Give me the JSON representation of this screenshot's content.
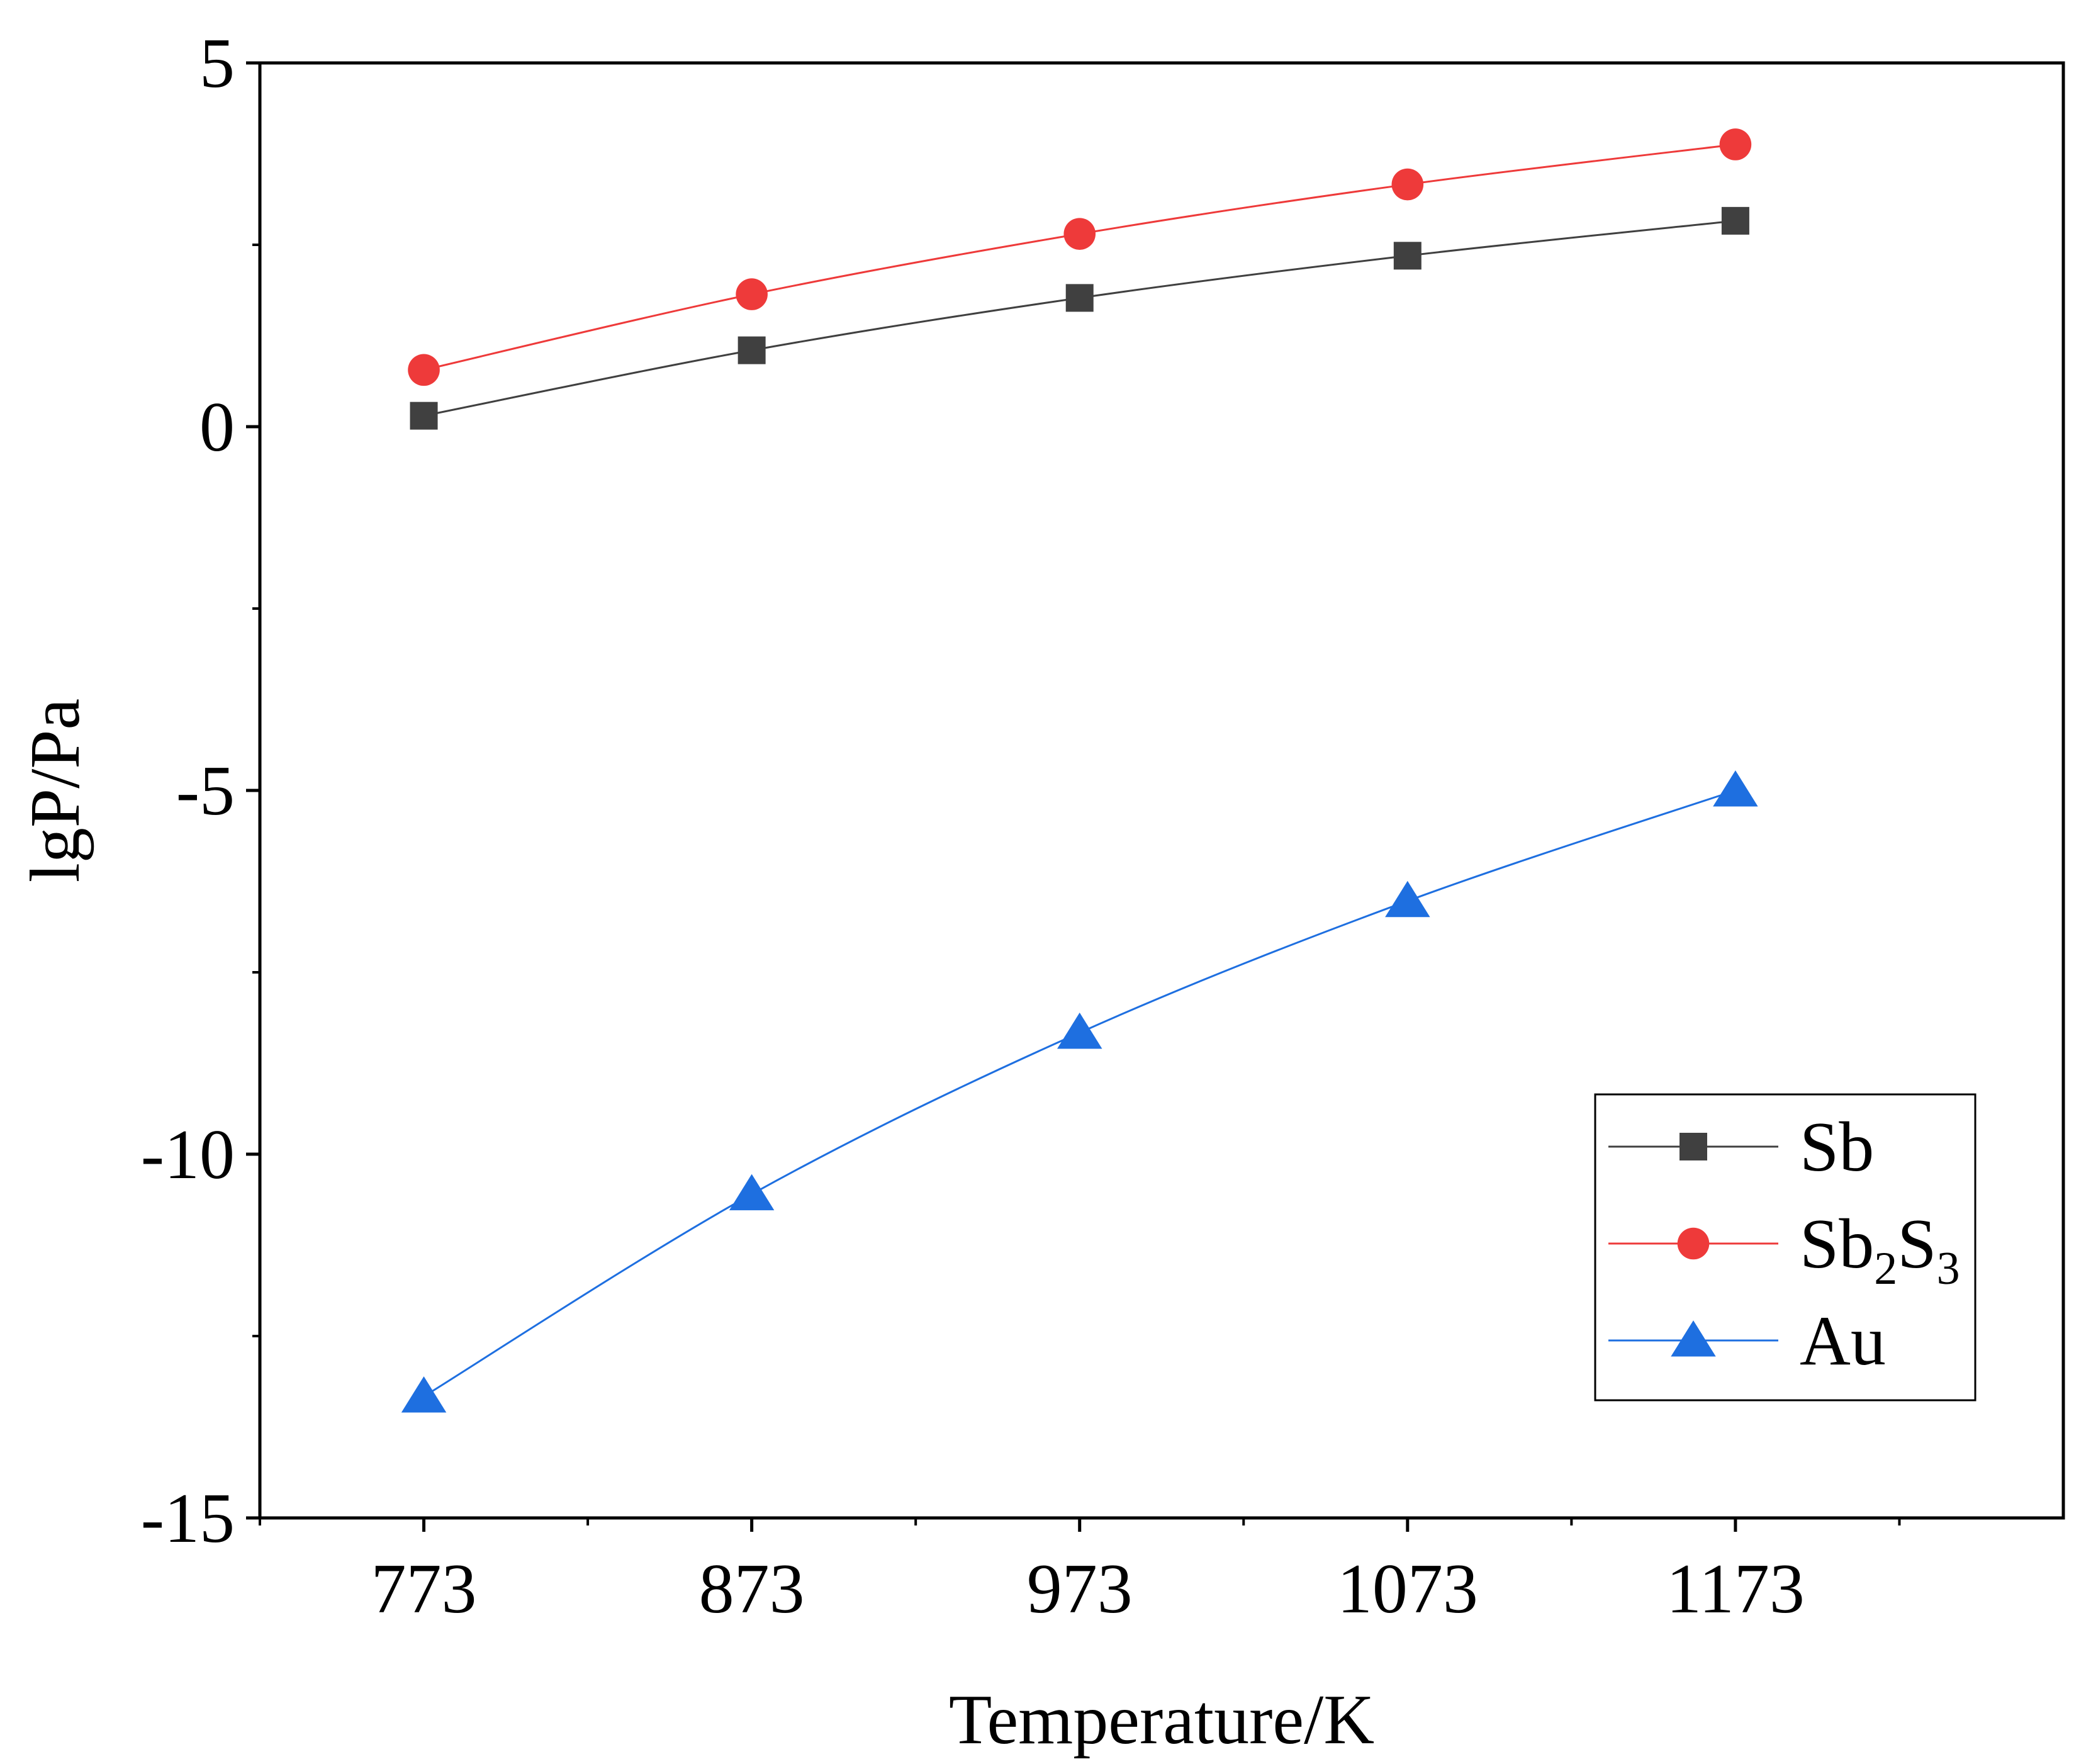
{
  "chart_data": {
    "type": "line",
    "title": "",
    "xlabel": "Temperature/K",
    "ylabel": "lgP/Pa",
    "x": [
      773,
      873,
      973,
      1073,
      1173
    ],
    "xlim": [
      723,
      1273
    ],
    "ylim": [
      -15,
      5
    ],
    "xticks": [
      773,
      873,
      973,
      1073,
      1173
    ],
    "xtick_labels": [
      "773",
      "873",
      "973",
      "1073",
      "1173"
    ],
    "yticks": [
      -15,
      -10,
      -5,
      0,
      5
    ],
    "ytick_labels": [
      "-15",
      "-10",
      "-5",
      "0",
      "5"
    ],
    "legend_position": "bottom-right",
    "series": [
      {
        "name": "Sb",
        "label_main": "Sb",
        "label_parts": [],
        "marker": "square",
        "color": "#404040",
        "values": [
          0.15,
          1.05,
          1.77,
          2.35,
          2.83
        ]
      },
      {
        "name": "Sb2S3",
        "label_main": "Sb",
        "label_parts": [
          {
            "sub": "2",
            "after": "S"
          },
          {
            "sub": "3",
            "after": ""
          }
        ],
        "marker": "circle",
        "color": "#ee3a3a",
        "values": [
          0.78,
          1.82,
          2.65,
          3.33,
          3.88
        ]
      },
      {
        "name": "Au",
        "label_main": "Au",
        "label_parts": [],
        "marker": "triangle",
        "color": "#1e6fe0",
        "values": [
          -13.33,
          -10.55,
          -8.33,
          -6.52,
          -5.0
        ]
      }
    ]
  }
}
